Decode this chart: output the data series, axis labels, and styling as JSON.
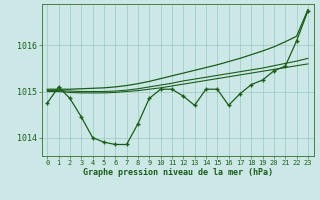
{
  "xlabel": "Graphe pression niveau de la mer (hPa)",
  "bg_color": "#cce8e6",
  "plot_bg_color": "#cce8e6",
  "line_color": "#1a5c1a",
  "grid_color": "#9cc8c4",
  "x_ticks": [
    0,
    1,
    2,
    3,
    4,
    5,
    6,
    7,
    8,
    9,
    10,
    11,
    12,
    13,
    14,
    15,
    16,
    17,
    18,
    19,
    20,
    21,
    22,
    23
  ],
  "ylim": [
    1013.6,
    1016.9
  ],
  "yticks": [
    1014,
    1015,
    1016
  ],
  "series": {
    "main": [
      1014.75,
      1015.1,
      1014.85,
      1014.45,
      1014.0,
      1013.9,
      1013.85,
      1013.85,
      1014.3,
      1014.85,
      1015.05,
      1015.05,
      1014.9,
      1014.7,
      1015.05,
      1015.05,
      1014.7,
      1014.95,
      1015.15,
      1015.25,
      1015.45,
      1015.55,
      1016.1,
      1016.75
    ],
    "smooth1": [
      1015.0,
      1015.0,
      1014.98,
      1014.97,
      1014.97,
      1014.97,
      1014.98,
      1015.0,
      1015.02,
      1015.05,
      1015.08,
      1015.12,
      1015.16,
      1015.2,
      1015.24,
      1015.28,
      1015.32,
      1015.36,
      1015.4,
      1015.44,
      1015.48,
      1015.52,
      1015.56,
      1015.6
    ],
    "smooth2": [
      1015.02,
      1015.02,
      1015.01,
      1015.0,
      1015.0,
      1015.0,
      1015.01,
      1015.03,
      1015.06,
      1015.1,
      1015.14,
      1015.18,
      1015.23,
      1015.27,
      1015.31,
      1015.35,
      1015.39,
      1015.43,
      1015.47,
      1015.51,
      1015.56,
      1015.61,
      1015.66,
      1015.72
    ],
    "trend": [
      1015.05,
      1015.05,
      1015.05,
      1015.06,
      1015.07,
      1015.08,
      1015.1,
      1015.13,
      1015.17,
      1015.22,
      1015.28,
      1015.34,
      1015.4,
      1015.46,
      1015.52,
      1015.58,
      1015.65,
      1015.72,
      1015.8,
      1015.88,
      1015.97,
      1016.08,
      1016.2,
      1016.78
    ]
  }
}
